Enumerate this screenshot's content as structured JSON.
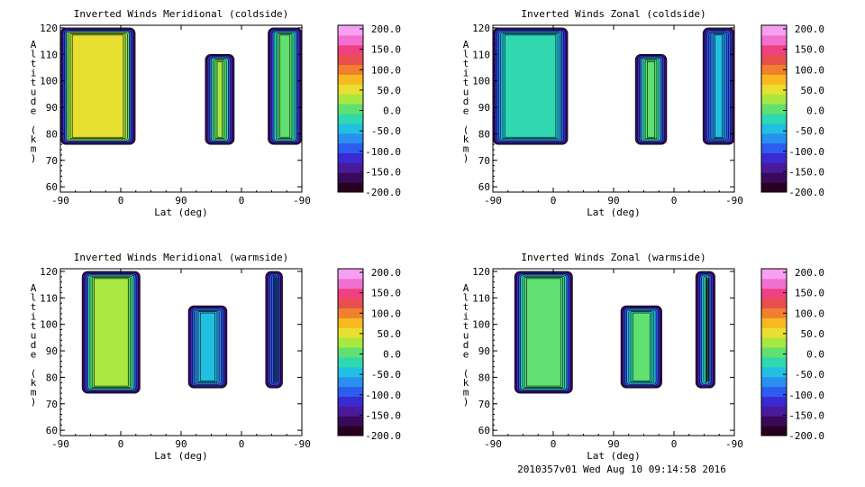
{
  "colors": {
    "background": "#ffffff",
    "axis": "#000000",
    "contour_line": "#000000",
    "colorbar": [
      "#2a0022",
      "#3a0a5a",
      "#4a1a9a",
      "#3a2ad0",
      "#2d5cf0",
      "#2a90f0",
      "#22c0e0",
      "#30d8b0",
      "#60e070",
      "#a8e840",
      "#e8e030",
      "#f8b820",
      "#f08030",
      "#e85050",
      "#f04080",
      "#f070d0",
      "#f8a0f0"
    ]
  },
  "footer_text": "2010357v01 Wed Aug 10 09:14:58 2016",
  "chart_data": [
    {
      "type": "heatmap",
      "title": "Inverted Winds Meridional (coldside)",
      "xlabel": "Lat (deg)",
      "ylabel": "Altitude (km)",
      "xticks": [
        "-90",
        "0",
        "90",
        "0",
        "-90"
      ],
      "yticks": [
        60,
        70,
        80,
        90,
        100,
        110,
        120
      ],
      "ylim": [
        58,
        121
      ],
      "colorbar": {
        "ticks": [
          "200.0",
          "150.0",
          "100.0",
          "50.0",
          "0.0",
          "-50.0",
          "-100.0",
          "-150.0",
          "-200.0"
        ],
        "range": [
          -200,
          200
        ]
      },
      "segments": [
        {
          "x": [
            0,
            31
          ],
          "alt": [
            76,
            120
          ],
          "value": 20
        },
        {
          "x": [
            60,
            72
          ],
          "alt": [
            76,
            110
          ],
          "value": -10
        },
        {
          "x": [
            86,
            100
          ],
          "alt": [
            76,
            120
          ],
          "value": -20
        }
      ]
    },
    {
      "type": "heatmap",
      "title": "Inverted Winds Zonal (coldside)",
      "xlabel": "Lat (deg)",
      "ylabel": "Altitude (km)",
      "xticks": [
        "-90",
        "0",
        "90",
        "0",
        "-90"
      ],
      "yticks": [
        60,
        70,
        80,
        90,
        100,
        110,
        120
      ],
      "ylim": [
        58,
        121
      ],
      "colorbar": {
        "ticks": [
          "200.0",
          "150.0",
          "100.0",
          "50.0",
          "0.0",
          "-50.0",
          "-100.0",
          "-150.0",
          "-200.0"
        ],
        "range": [
          -200,
          200
        ]
      },
      "segments": [
        {
          "x": [
            0,
            31
          ],
          "alt": [
            76,
            120
          ],
          "value": -60
        },
        {
          "x": [
            59,
            72
          ],
          "alt": [
            76,
            110
          ],
          "value": -20
        },
        {
          "x": [
            87,
            100
          ],
          "alt": [
            76,
            120
          ],
          "value": -80
        }
      ]
    },
    {
      "type": "heatmap",
      "title": "Inverted Winds Meridional (warmside)",
      "xlabel": "Lat (deg)",
      "ylabel": "Altitude (km)",
      "xticks": [
        "-90",
        "0",
        "90",
        "0",
        "-90"
      ],
      "yticks": [
        60,
        70,
        80,
        90,
        100,
        110,
        120
      ],
      "ylim": [
        58,
        121
      ],
      "colorbar": {
        "ticks": [
          "200.0",
          "150.0",
          "100.0",
          "50.0",
          "0.0",
          "-50.0",
          "-100.0",
          "-150.0",
          "-200.0"
        ],
        "range": [
          -200,
          200
        ]
      },
      "segments": [
        {
          "x": [
            9,
            33
          ],
          "alt": [
            74,
            120
          ],
          "value": -10
        },
        {
          "x": [
            53,
            69
          ],
          "alt": [
            76,
            107
          ],
          "value": -70
        },
        {
          "x": [
            85,
            92
          ],
          "alt": [
            76,
            120
          ],
          "value": -90
        }
      ]
    },
    {
      "type": "heatmap",
      "title": "Inverted Winds Zonal (warmside)",
      "xlabel": "Lat (deg)",
      "ylabel": "Altitude (km)",
      "xticks": [
        "-90",
        "0",
        "90",
        "0",
        "-90"
      ],
      "yticks": [
        60,
        70,
        80,
        90,
        100,
        110,
        120
      ],
      "ylim": [
        58,
        121
      ],
      "colorbar": {
        "ticks": [
          "200.0",
          "150.0",
          "100.0",
          "50.0",
          "0.0",
          "-50.0",
          "-100.0",
          "-150.0",
          "-200.0"
        ],
        "range": [
          -200,
          200
        ]
      },
      "segments": [
        {
          "x": [
            9,
            33
          ],
          "alt": [
            74,
            120
          ],
          "value": -20
        },
        {
          "x": [
            53,
            70
          ],
          "alt": [
            76,
            107
          ],
          "value": -40
        },
        {
          "x": [
            84,
            92
          ],
          "alt": [
            76,
            120
          ],
          "value": -30
        }
      ]
    }
  ]
}
